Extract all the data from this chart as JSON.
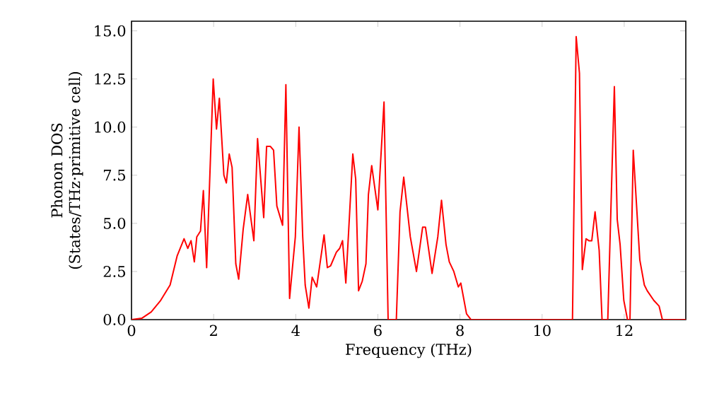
{
  "chart_data": {
    "type": "line",
    "xlabel": "Frequency (THz)",
    "ylabel": "Phonon DOS (States/THz·primitive cell)",
    "xlim": [
      0,
      13.5
    ],
    "ylim": [
      0,
      15.5
    ],
    "xticks": [
      0,
      2,
      4,
      6,
      8,
      10,
      12
    ],
    "yticks": [
      {
        "value": 0,
        "label": "0.0"
      },
      {
        "value": 2.5,
        "label": "2.5"
      },
      {
        "value": 5,
        "label": "5.0"
      },
      {
        "value": 7.5,
        "label": "7.5"
      },
      {
        "value": 10,
        "label": "10.0"
      },
      {
        "value": 12.5,
        "label": "12.5"
      },
      {
        "value": 15,
        "label": "15.0"
      }
    ],
    "marker": "none",
    "line_style": "solid",
    "series": [
      {
        "color": "#ff0000",
        "x": [
          0,
          0.25,
          0.48,
          0.71,
          0.94,
          1.11,
          1.28,
          1.37,
          1.45,
          1.53,
          1.59,
          1.68,
          1.75,
          1.83,
          1.99,
          2.07,
          2.14,
          2.25,
          2.31,
          2.38,
          2.45,
          2.54,
          2.61,
          2.72,
          2.83,
          2.98,
          3.07,
          3.22,
          3.29,
          3.38,
          3.46,
          3.54,
          3.68,
          3.76,
          3.85,
          3.99,
          4.08,
          4.17,
          4.23,
          4.32,
          4.4,
          4.51,
          4.69,
          4.77,
          4.85,
          4.99,
          5.07,
          5.14,
          5.22,
          5.39,
          5.46,
          5.53,
          5.62,
          5.71,
          5.77,
          5.85,
          6.0,
          6.15,
          6.25,
          6.45,
          6.54,
          6.63,
          6.79,
          6.94,
          7.09,
          7.16,
          7.32,
          7.46,
          7.55,
          7.66,
          7.74,
          7.85,
          7.96,
          8.02,
          8.16,
          8.27,
          10.74,
          10.83,
          10.91,
          10.98,
          11.07,
          11.14,
          11.21,
          11.29,
          11.39,
          11.46,
          11.6,
          11.76,
          11.83,
          11.9,
          11.99,
          12.08,
          12.14,
          12.22,
          12.38,
          12.49,
          12.56,
          12.72,
          12.85,
          12.93,
          13.5
        ],
        "values": [
          0,
          0.07,
          0.4,
          1.0,
          1.8,
          3.3,
          4.2,
          3.7,
          4.1,
          3.0,
          4.3,
          4.6,
          6.7,
          2.7,
          12.5,
          9.9,
          11.5,
          7.5,
          7.1,
          8.6,
          7.9,
          2.9,
          2.1,
          4.7,
          6.5,
          4.1,
          9.4,
          5.3,
          9.0,
          9.0,
          8.8,
          5.9,
          4.9,
          12.2,
          1.1,
          4.3,
          10.0,
          4.3,
          1.8,
          0.6,
          2.2,
          1.7,
          4.4,
          2.7,
          2.8,
          3.5,
          3.7,
          4.1,
          1.9,
          8.6,
          7.3,
          1.5,
          2.0,
          2.9,
          6.5,
          8.0,
          5.7,
          11.3,
          0,
          0,
          5.6,
          7.4,
          4.3,
          2.5,
          4.8,
          4.8,
          2.4,
          4.3,
          6.2,
          3.9,
          3.0,
          2.5,
          1.7,
          1.9,
          0.3,
          0,
          0,
          14.7,
          12.8,
          2.6,
          4.2,
          4.1,
          4.1,
          5.6,
          3.6,
          0,
          0,
          12.1,
          5.2,
          3.9,
          1.0,
          0,
          0,
          8.8,
          3.1,
          1.8,
          1.5,
          1.0,
          0.7,
          0,
          0
        ]
      }
    ]
  }
}
